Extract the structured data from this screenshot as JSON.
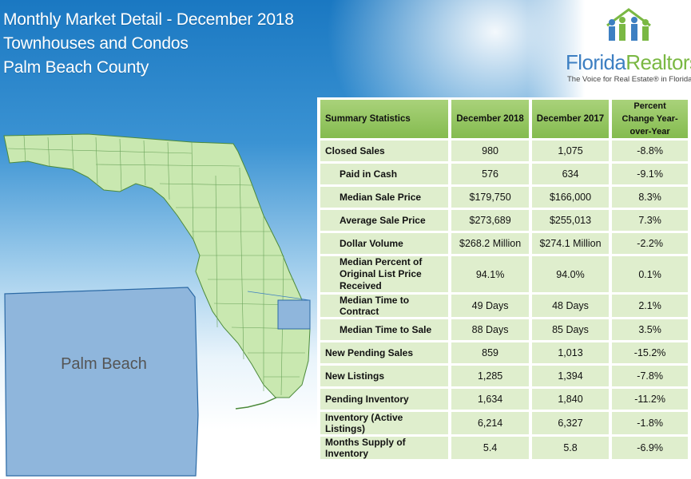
{
  "header": {
    "title_line1": "Monthly Market Detail - December 2018",
    "title_line2": "Townhouses and Condos",
    "title_line3": "Palm Beach County"
  },
  "logo": {
    "name_part1": "Florida",
    "name_part2": "Realtors",
    "registered": "®",
    "tagline": "The Voice for Real Estate® in Florida",
    "icon": "people-house-logo-icon"
  },
  "map": {
    "county_label": "Palm Beach",
    "state_fill": "#c9e8b0",
    "county_fill": "#8fb6dc"
  },
  "colors": {
    "header_green": "#8dc35a",
    "row_green": "#dfeecd",
    "brand_blue": "#3d7fc2",
    "brand_green": "#7ab843"
  },
  "table": {
    "headers": [
      "Summary Statistics",
      "December 2018",
      "December 2017",
      "Percent Change Year-over-Year"
    ],
    "rows": [
      {
        "label": "Closed Sales",
        "d2018": "980",
        "d2017": "1,075",
        "change": "-8.8%"
      },
      {
        "label": "Paid in Cash",
        "d2018": "576",
        "d2017": "634",
        "change": "-9.1%"
      },
      {
        "label": "Median Sale Price",
        "d2018": "$179,750",
        "d2017": "$166,000",
        "change": "8.3%"
      },
      {
        "label": "Average Sale Price",
        "d2018": "$273,689",
        "d2017": "$255,013",
        "change": "7.3%"
      },
      {
        "label": "Dollar Volume",
        "d2018": "$268.2 Million",
        "d2017": "$274.1 Million",
        "change": "-2.2%"
      },
      {
        "label": "Median Percent of Original List Price Received",
        "d2018": "94.1%",
        "d2017": "94.0%",
        "change": "0.1%"
      },
      {
        "label": "Median Time to Contract",
        "d2018": "49 Days",
        "d2017": "48 Days",
        "change": "2.1%"
      },
      {
        "label": "Median Time to Sale",
        "d2018": "88 Days",
        "d2017": "85 Days",
        "change": "3.5%"
      },
      {
        "label": "New Pending Sales",
        "d2018": "859",
        "d2017": "1,013",
        "change": "-15.2%"
      },
      {
        "label": "New Listings",
        "d2018": "1,285",
        "d2017": "1,394",
        "change": "-7.8%"
      },
      {
        "label": "Pending Inventory",
        "d2018": "1,634",
        "d2017": "1,840",
        "change": "-11.2%"
      },
      {
        "label": "Inventory (Active Listings)",
        "d2018": "6,214",
        "d2017": "6,327",
        "change": "-1.8%"
      },
      {
        "label": "Months Supply of Inventory",
        "d2018": "5.4",
        "d2017": "5.8",
        "change": "-6.9%"
      }
    ]
  }
}
